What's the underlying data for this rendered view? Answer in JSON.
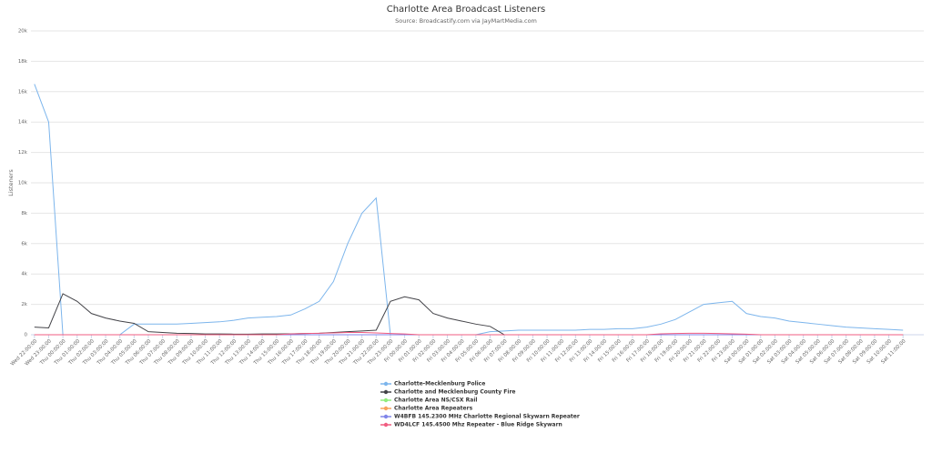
{
  "chart_data": {
    "type": "line",
    "title": "Charlotte Area Broadcast Listeners",
    "subtitle": "Source: Broadcastify.com via JayMartMedia.com",
    "y_label": "Listeners",
    "categories": [
      "Wed 22:00:00",
      "Wed 23:00:00",
      "Thu 00:00:00",
      "Thu 01:00:00",
      "Thu 02:00:00",
      "Thu 03:00:00",
      "Thu 04:00:00",
      "Thu 05:00:00",
      "Thu 06:00:00",
      "Thu 07:00:00",
      "Thu 08:00:00",
      "Thu 09:00:00",
      "Thu 10:00:00",
      "Thu 11:00:00",
      "Thu 12:00:00",
      "Thu 13:00:00",
      "Thu 14:00:00",
      "Thu 15:00:00",
      "Thu 16:00:00",
      "Thu 17:00:00",
      "Thu 18:00:00",
      "Thu 19:00:00",
      "Thu 20:00:00",
      "Thu 21:00:00",
      "Thu 22:00:00",
      "Thu 23:00:00",
      "Fri 00:00:00",
      "Fri 01:00:00",
      "Fri 02:00:00",
      "Fri 03:00:00",
      "Fri 04:00:00",
      "Fri 05:00:00",
      "Fri 06:00:00",
      "Fri 07:00:00",
      "Fri 08:00:00",
      "Fri 09:00:00",
      "Fri 10:00:00",
      "Fri 11:00:00",
      "Fri 12:00:00",
      "Fri 13:00:00",
      "Fri 14:00:00",
      "Fri 15:00:00",
      "Fri 16:00:00",
      "Fri 17:00:00",
      "Fri 18:00:00",
      "Fri 19:00:00",
      "Fri 20:00:00",
      "Fri 21:00:00",
      "Fri 22:00:00",
      "Fri 23:00:00",
      "Sat 00:00:00",
      "Sat 01:00:00",
      "Sat 02:00:00",
      "Sat 03:00:00",
      "Sat 04:00:00",
      "Sat 05:00:00",
      "Sat 06:00:00",
      "Sat 07:00:00",
      "Sat 08:00:00",
      "Sat 09:00:00",
      "Sat 10:00:00",
      "Sat 11:00:00"
    ],
    "series": [
      {
        "name": "Charlotte-Mecklenburg Police",
        "color": "#7cb5ec",
        "values": [
          16500,
          14000,
          0,
          0,
          0,
          0,
          0,
          700,
          700,
          700,
          700,
          750,
          800,
          850,
          950,
          1100,
          1150,
          1200,
          1300,
          1700,
          2200,
          3500,
          6000,
          8000,
          9000,
          0,
          0,
          0,
          0,
          0,
          0,
          0,
          200,
          250,
          300,
          300,
          300,
          300,
          300,
          350,
          350,
          400,
          400,
          500,
          700,
          1000,
          1500,
          2000,
          2100,
          2200,
          1400,
          1200,
          1100,
          900,
          800,
          700,
          600,
          500,
          450,
          400,
          350,
          300
        ]
      },
      {
        "name": "Charlotte and Mecklenburg County Fire",
        "color": "#434348",
        "values": [
          500,
          450,
          2700,
          2200,
          1400,
          1100,
          900,
          750,
          200,
          150,
          100,
          80,
          50,
          50,
          40,
          40,
          50,
          50,
          60,
          80,
          100,
          150,
          200,
          250,
          300,
          2200,
          2500,
          2300,
          1400,
          1100,
          900,
          700,
          550,
          0,
          0,
          0,
          0,
          0,
          0,
          0,
          0,
          0,
          0,
          0,
          0,
          0,
          0,
          0,
          0,
          0,
          0,
          0,
          0,
          0,
          0,
          0,
          0,
          0,
          0,
          0,
          0,
          0
        ]
      },
      {
        "name": "Charlotte Area NS/CSX Rail",
        "color": "#90ed7d",
        "values": [
          0,
          0,
          0,
          0,
          0,
          0,
          0,
          0,
          0,
          0,
          0,
          0,
          0,
          0,
          0,
          0,
          0,
          0,
          0,
          0,
          0,
          0,
          0,
          0,
          0,
          0,
          0,
          0,
          0,
          0,
          0,
          0,
          0,
          0,
          0,
          0,
          0,
          0,
          0,
          0,
          0,
          0,
          0,
          0,
          0,
          0,
          0,
          0,
          0,
          0,
          0,
          0,
          0,
          0,
          0,
          0,
          0,
          0,
          0,
          0,
          0,
          0
        ]
      },
      {
        "name": "Charlotte Area Repeaters",
        "color": "#f7a35c",
        "values": [
          0,
          0,
          0,
          0,
          0,
          0,
          0,
          0,
          0,
          0,
          0,
          0,
          0,
          0,
          0,
          0,
          0,
          0,
          0,
          0,
          0,
          0,
          0,
          0,
          0,
          0,
          0,
          0,
          0,
          0,
          0,
          0,
          0,
          0,
          0,
          0,
          0,
          0,
          0,
          0,
          0,
          0,
          0,
          0,
          0,
          0,
          0,
          0,
          0,
          0,
          0,
          0,
          0,
          0,
          0,
          0,
          0,
          0,
          0,
          0,
          0,
          0
        ]
      },
      {
        "name": "W4BFB 145.2300 MHz Charlotte Regional Skywarn Repeater",
        "color": "#8085e9",
        "values": [
          0,
          0,
          0,
          0,
          0,
          0,
          0,
          0,
          0,
          0,
          0,
          0,
          0,
          0,
          0,
          0,
          0,
          0,
          0,
          0,
          0,
          0,
          0,
          0,
          0,
          0,
          0,
          0,
          0,
          0,
          0,
          0,
          0,
          0,
          0,
          0,
          0,
          0,
          0,
          0,
          0,
          0,
          0,
          0,
          0,
          0,
          0,
          0,
          0,
          0,
          0,
          0,
          0,
          0,
          0,
          0,
          0,
          0,
          0,
          0,
          0,
          0
        ]
      },
      {
        "name": "WD4LCF 145.4500 Mhz Repeater - Blue Ridge Skywarn",
        "color": "#f15c80",
        "values": [
          0,
          0,
          0,
          0,
          0,
          0,
          0,
          0,
          0,
          0,
          0,
          0,
          0,
          0,
          0,
          0,
          0,
          0,
          50,
          80,
          100,
          120,
          150,
          150,
          120,
          80,
          50,
          0,
          0,
          0,
          0,
          0,
          0,
          0,
          0,
          0,
          0,
          0,
          0,
          0,
          0,
          0,
          0,
          0,
          60,
          80,
          100,
          100,
          80,
          60,
          40,
          0,
          0,
          0,
          0,
          0,
          0,
          0,
          0,
          0,
          0,
          0
        ]
      }
    ],
    "ylim": [
      0,
      20000
    ],
    "yticks": [
      0,
      {
        "value": 2000,
        "label": "2k"
      },
      {
        "value": 4000,
        "label": "4k"
      },
      {
        "value": 6000,
        "label": "6k"
      },
      {
        "value": 8000,
        "label": "8k"
      },
      {
        "value": 10000,
        "label": "10k"
      },
      {
        "value": 12000,
        "label": "12k"
      },
      {
        "value": 14000,
        "label": "14k"
      },
      {
        "value": 16000,
        "label": "16k"
      },
      {
        "value": 18000,
        "label": "18k"
      },
      {
        "value": 20000,
        "label": "20k"
      }
    ],
    "grid": true
  }
}
